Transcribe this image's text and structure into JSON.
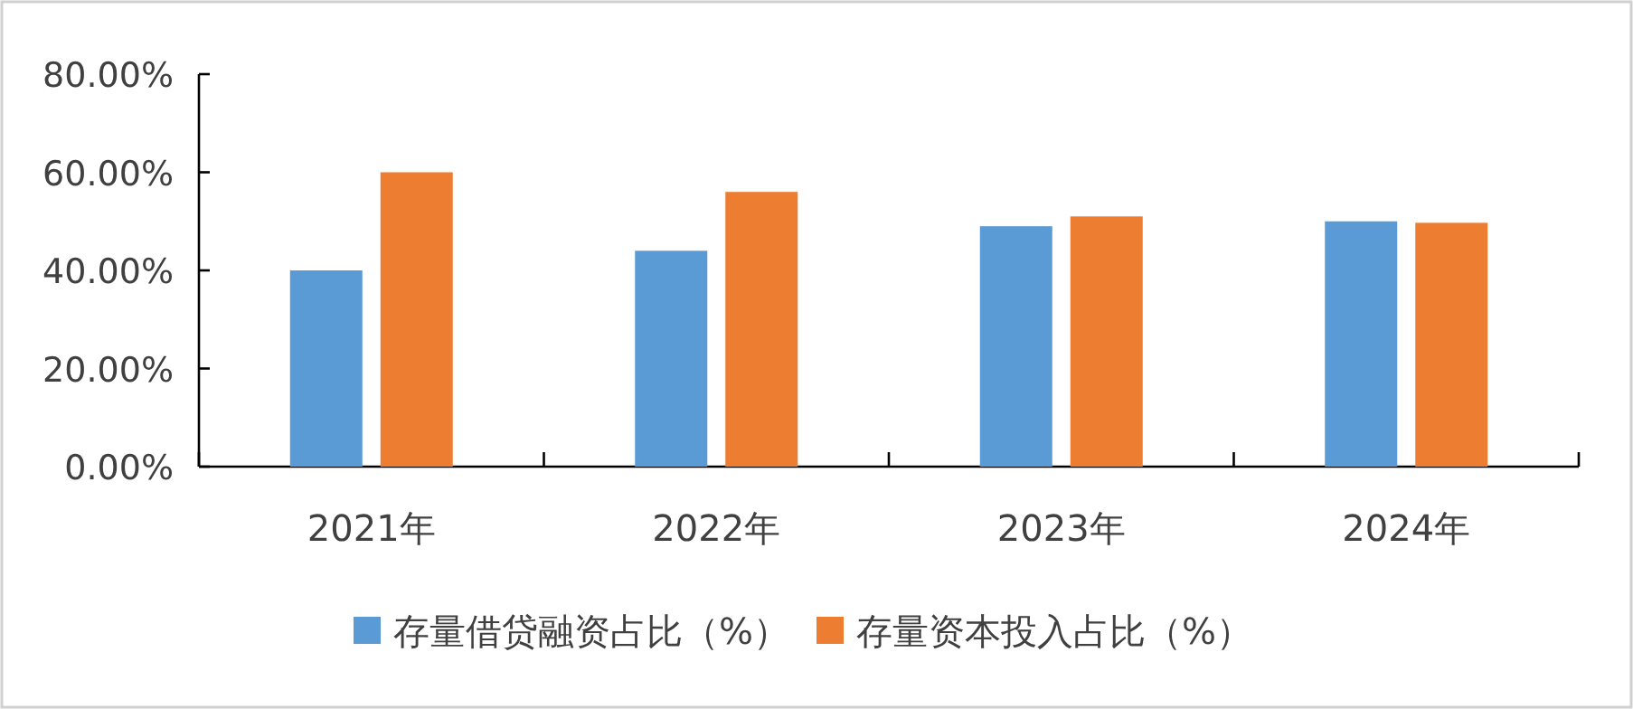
{
  "chart_data": {
    "type": "bar",
    "categories": [
      "2021年",
      "2022年",
      "2023年",
      "2024年"
    ],
    "series": [
      {
        "name": "存量借贷融资占比（%）",
        "color": "#5b9bd5",
        "values": [
          40,
          44,
          49,
          50
        ]
      },
      {
        "name": "存量资本投入占比（%）",
        "color": "#ed7d31",
        "values": [
          60,
          56,
          51,
          49.7
        ]
      }
    ],
    "ylim": [
      0,
      80
    ],
    "yticks": [
      {
        "value": 0,
        "label": "0.00%"
      },
      {
        "value": 20,
        "label": "20.00%"
      },
      {
        "value": 40,
        "label": "40.00%"
      },
      {
        "value": 60,
        "label": "60.00%"
      },
      {
        "value": 80,
        "label": "80.00%"
      }
    ],
    "grid": false,
    "legend": "bottom"
  }
}
